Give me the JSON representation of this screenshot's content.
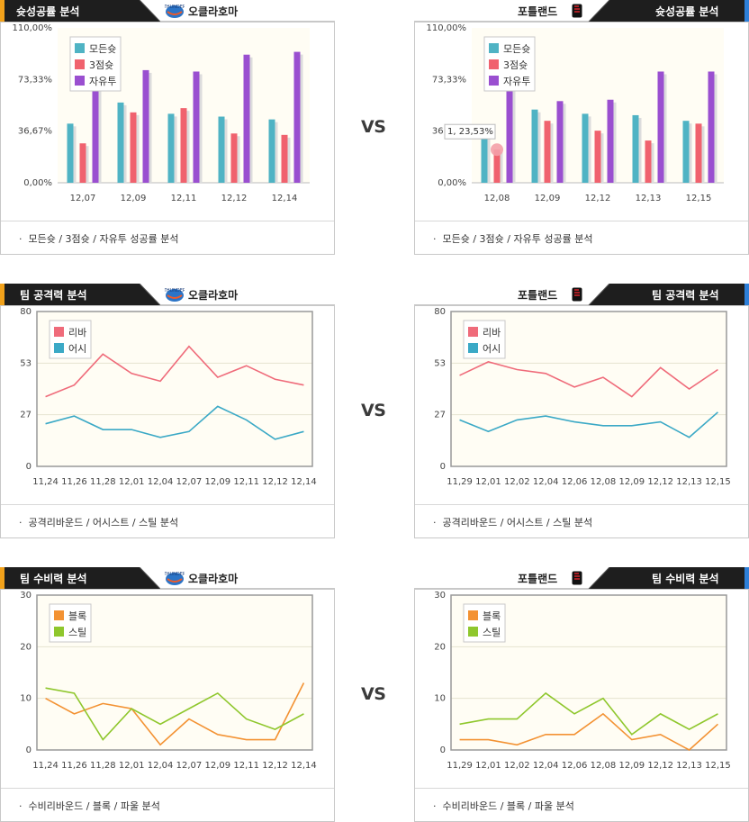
{
  "vs_label": "VS",
  "colors": {
    "all_fg": "#4fb3c4",
    "three": "#f0626e",
    "ft": "#9a4fd0",
    "rebound": "#ef6b7a",
    "assist": "#3ba9c6",
    "block": "#f39233",
    "steal": "#8fc72d"
  },
  "sections": [
    {
      "title": "슛성공률 분석",
      "footer": "모든슛 / 3점슛 / 자유투 성공률 분석",
      "teams": [
        {
          "team": "오클라호마",
          "logo_icon": "thunder-logo-icon",
          "chart_data": {
            "type": "bar",
            "ylim": [
              0,
              110
            ],
            "yticks": [
              "110,00%",
              "73,33%",
              "36,67%",
              "0,00%"
            ],
            "categories": [
              "12,07",
              "12,09",
              "12,11",
              "12,12",
              "12,14"
            ],
            "series": [
              {
                "name": "모든슛",
                "color": "#4fb3c4",
                "values": [
                  42,
                  57,
                  49,
                  47,
                  45
                ]
              },
              {
                "name": "3점슛",
                "color": "#f0626e",
                "values": [
                  28,
                  50,
                  53,
                  35,
                  34
                ]
              },
              {
                "name": "자유투",
                "color": "#9a4fd0",
                "values": [
                  68,
                  80,
                  79,
                  91,
                  93
                ]
              }
            ]
          }
        },
        {
          "team": "포틀랜드",
          "logo_icon": "blazers-logo-icon",
          "chart_data": {
            "type": "bar",
            "ylim": [
              0,
              110
            ],
            "yticks": [
              "110,00%",
              "73,33%",
              "36,67%",
              "0,00%"
            ],
            "categories": [
              "12,08",
              "12,09",
              "12,12",
              "12,13",
              "12,15"
            ],
            "series": [
              {
                "name": "모든슛",
                "color": "#4fb3c4",
                "values": [
                  33,
                  52,
                  49,
                  48,
                  44
                ]
              },
              {
                "name": "3점슛",
                "color": "#f0626e",
                "values": [
                  23.53,
                  44,
                  37,
                  30,
                  42
                ]
              },
              {
                "name": "자유투",
                "color": "#9a4fd0",
                "values": [
                  68,
                  58,
                  59,
                  79,
                  79
                ]
              }
            ],
            "tooltip": {
              "label": "1, 23,53%"
            }
          }
        }
      ]
    },
    {
      "title": "팀 공격력 분석",
      "footer": "공격리바운드 / 어시스트 / 스틸 분석",
      "teams": [
        {
          "team": "오클라호마",
          "logo_icon": "thunder-logo-icon",
          "chart_data": {
            "type": "line",
            "ylim": [
              0,
              80
            ],
            "yticks": [
              "80",
              "53",
              "27",
              "0"
            ],
            "categories": [
              "11,24",
              "11,26",
              "11,28",
              "12,01",
              "12,04",
              "12,07",
              "12,09",
              "12,11",
              "12,12",
              "12,14"
            ],
            "series": [
              {
                "name": "리바",
                "color": "#ef6b7a",
                "values": [
                  36,
                  42,
                  58,
                  48,
                  44,
                  62,
                  46,
                  52,
                  45,
                  42
                ]
              },
              {
                "name": "어시",
                "color": "#3ba9c6",
                "values": [
                  22,
                  26,
                  19,
                  19,
                  15,
                  18,
                  31,
                  24,
                  14,
                  18
                ]
              }
            ]
          }
        },
        {
          "team": "포틀랜드",
          "logo_icon": "blazers-logo-icon",
          "chart_data": {
            "type": "line",
            "ylim": [
              0,
              80
            ],
            "yticks": [
              "80",
              "53",
              "27",
              "0"
            ],
            "categories": [
              "11,29",
              "12,01",
              "12,02",
              "12,04",
              "12,06",
              "12,08",
              "12,09",
              "12,12",
              "12,13",
              "12,15"
            ],
            "series": [
              {
                "name": "리바",
                "color": "#ef6b7a",
                "values": [
                  47,
                  54,
                  50,
                  48,
                  41,
                  46,
                  36,
                  51,
                  40,
                  50
                ]
              },
              {
                "name": "어시",
                "color": "#3ba9c6",
                "values": [
                  24,
                  18,
                  24,
                  26,
                  23,
                  21,
                  21,
                  23,
                  15,
                  28
                ]
              }
            ]
          }
        }
      ]
    },
    {
      "title": "팀 수비력 분석",
      "footer": "수비리바운드 / 블록 / 파울 분석",
      "teams": [
        {
          "team": "오클라호마",
          "logo_icon": "thunder-logo-icon",
          "chart_data": {
            "type": "line",
            "ylim": [
              0,
              30
            ],
            "yticks": [
              "30",
              "20",
              "10",
              "0"
            ],
            "categories": [
              "11,24",
              "11,26",
              "11,28",
              "12,01",
              "12,04",
              "12,07",
              "12,09",
              "12,11",
              "12,12",
              "12,14"
            ],
            "series": [
              {
                "name": "블록",
                "color": "#f39233",
                "values": [
                  10,
                  7,
                  9,
                  8,
                  1,
                  6,
                  3,
                  2,
                  2,
                  13
                ]
              },
              {
                "name": "스틸",
                "color": "#8fc72d",
                "values": [
                  12,
                  11,
                  2,
                  8,
                  5,
                  8,
                  11,
                  6,
                  4,
                  7
                ]
              }
            ]
          }
        },
        {
          "team": "포틀랜드",
          "logo_icon": "blazers-logo-icon",
          "chart_data": {
            "type": "line",
            "ylim": [
              0,
              30
            ],
            "yticks": [
              "30",
              "20",
              "10",
              "0"
            ],
            "categories": [
              "11,29",
              "12,01",
              "12,02",
              "12,04",
              "12,06",
              "12,08",
              "12,09",
              "12,12",
              "12,13",
              "12,15"
            ],
            "series": [
              {
                "name": "블록",
                "color": "#f39233",
                "values": [
                  2,
                  2,
                  1,
                  3,
                  3,
                  7,
                  2,
                  3,
                  0,
                  5
                ]
              },
              {
                "name": "스틸",
                "color": "#8fc72d",
                "values": [
                  5,
                  6,
                  6,
                  11,
                  7,
                  10,
                  3,
                  7,
                  4,
                  7
                ]
              }
            ]
          }
        }
      ]
    }
  ]
}
